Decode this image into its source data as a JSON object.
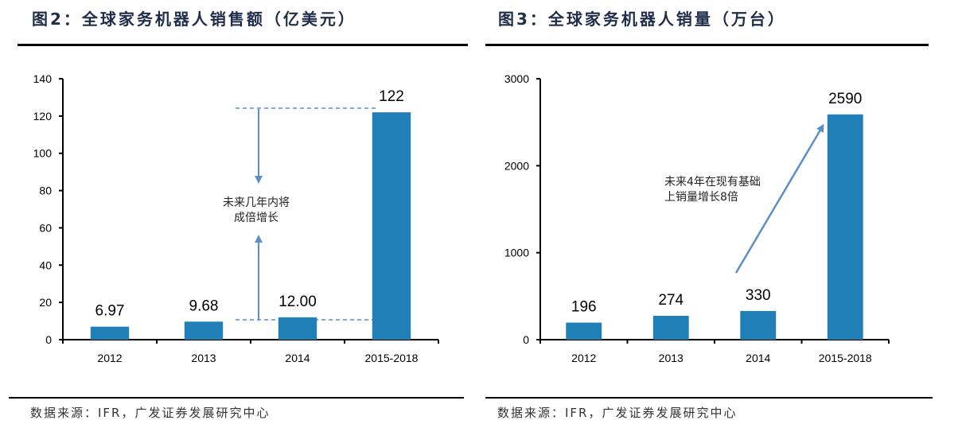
{
  "chart_data": [
    {
      "type": "bar",
      "title": "图2：全球家务机器人销售额（亿美元）",
      "categories": [
        "2012",
        "2013",
        "2014",
        "2015-2018"
      ],
      "values": [
        6.97,
        9.68,
        12.0,
        122
      ],
      "data_labels": [
        "6.97",
        "9.68",
        "12.00",
        "122"
      ],
      "ylim": [
        0,
        140
      ],
      "yticks": [
        0,
        20,
        40,
        60,
        80,
        100,
        120,
        140
      ],
      "annotation": [
        "未来几年内将",
        "成倍增长"
      ],
      "source": "数据来源：IFR，广发证券发展研究中心",
      "color": "#1f7fb6"
    },
    {
      "type": "bar",
      "title": "图3：全球家务机器人销量（万台）",
      "categories": [
        "2012",
        "2013",
        "2014",
        "2015-2018"
      ],
      "values": [
        196,
        274,
        330,
        2590
      ],
      "data_labels": [
        "196",
        "274",
        "330",
        "2590"
      ],
      "ylim": [
        0,
        3000
      ],
      "yticks": [
        0,
        1000,
        2000,
        3000
      ],
      "annotation": [
        "未来4年在现有基础",
        "上销量增长8倍"
      ],
      "source": "数据来源：IFR，广发证券发展研究中心",
      "color": "#1f7fb6"
    }
  ]
}
